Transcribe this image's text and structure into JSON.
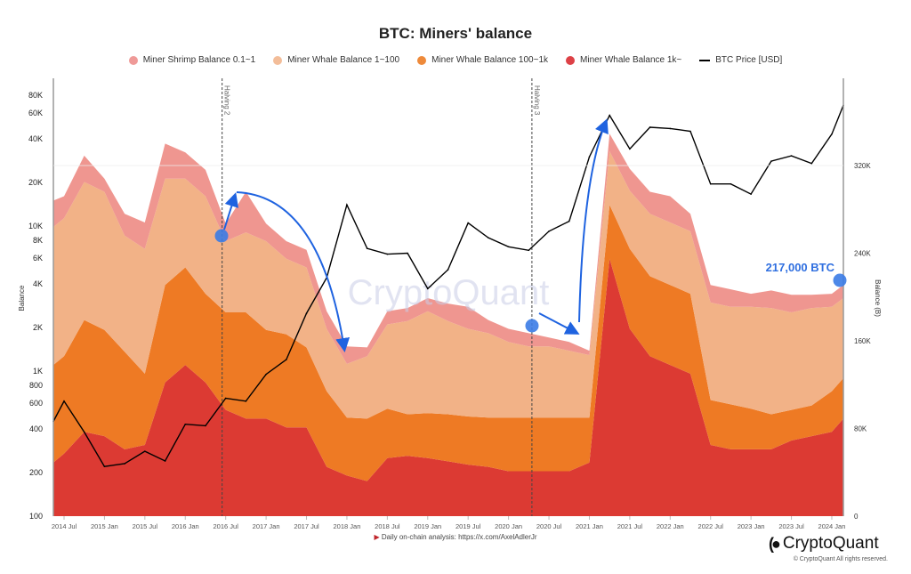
{
  "chart_data": {
    "type": "area",
    "stacked": true,
    "title": "BTC: Miners' balance",
    "ylabel_left": "Balance",
    "ylabel_right": "Balance (B)",
    "left_axis": {
      "scale": "log",
      "range": [
        100,
        100000
      ],
      "ticks": [
        "100",
        "200",
        "400",
        "600",
        "800",
        "1K",
        "2K",
        "4K",
        "6K",
        "8K",
        "10K",
        "20K",
        "40K",
        "60K",
        "80K"
      ]
    },
    "right_axis": {
      "scale": "linear",
      "range": [
        0,
        400000
      ],
      "ticks": [
        "0",
        "80K",
        "160K",
        "240K",
        "320K"
      ]
    },
    "x_ticks": [
      "2014 Jul",
      "2015 Jan",
      "2015 Jul",
      "2016 Jan",
      "2016 Jul",
      "2017 Jan",
      "2017 Jul",
      "2018 Jan",
      "2018 Jul",
      "2019 Jan",
      "2019 Jul",
      "2020 Jan",
      "2020 Jul",
      "2021 Jan",
      "2021 Jul",
      "2022 Jan",
      "2022 Jul",
      "2023 Jan",
      "2023 Jul",
      "2024 Jan"
    ],
    "legend_placement": "top",
    "x": [
      "2014-05",
      "2014-07",
      "2014-10",
      "2015-01",
      "2015-04",
      "2015-07",
      "2015-10",
      "2016-01",
      "2016-04",
      "2016-07",
      "2016-10",
      "2017-01",
      "2017-04",
      "2017-07",
      "2017-10",
      "2018-01",
      "2018-04",
      "2018-07",
      "2018-10",
      "2019-01",
      "2019-04",
      "2019-07",
      "2019-10",
      "2020-01",
      "2020-04",
      "2020-07",
      "2020-10",
      "2021-01",
      "2021-04",
      "2021-07",
      "2021-10",
      "2022-01",
      "2022-04",
      "2022-07",
      "2022-10",
      "2023-01",
      "2023-04",
      "2023-07",
      "2023-10",
      "2024-01",
      "2024-03"
    ],
    "series": [
      {
        "name": "Miner Whale Balance 1k~",
        "axis": "right",
        "color": "#dc3a33",
        "values": [
          49000,
          57000,
          77000,
          73000,
          61000,
          65000,
          122000,
          138000,
          122000,
          97000,
          89000,
          89000,
          81000,
          81000,
          45000,
          37000,
          32000,
          53000,
          55000,
          53000,
          50000,
          47000,
          45000,
          41000,
          41000,
          41000,
          41000,
          49000,
          235000,
          171000,
          146000,
          138000,
          130000,
          65000,
          61000,
          61000,
          61000,
          69000,
          73000,
          77000,
          89000
        ]
      },
      {
        "name": "Miner Whale Balance 100~1k",
        "axis": "right",
        "color": "#ee7a24",
        "values": [
          89000,
          89000,
          102000,
          97000,
          89000,
          65000,
          89000,
          89000,
          81000,
          89000,
          97000,
          81000,
          85000,
          73000,
          69000,
          53000,
          57000,
          45000,
          38000,
          41000,
          43000,
          44000,
          45000,
          49000,
          49000,
          49000,
          49000,
          41000,
          49000,
          73000,
          73000,
          73000,
          73000,
          41000,
          41000,
          37000,
          32000,
          28000,
          28000,
          37000,
          37000
        ]
      },
      {
        "name": "Miner Whale Balance 1~100",
        "axis": "right",
        "color": "#f2b287",
        "values": [
          126000,
          126000,
          126000,
          126000,
          106000,
          114000,
          97000,
          81000,
          89000,
          65000,
          73000,
          81000,
          69000,
          73000,
          57000,
          49000,
          57000,
          77000,
          85000,
          93000,
          85000,
          80000,
          77000,
          69000,
          65000,
          65000,
          61000,
          57000,
          49000,
          53000,
          57000,
          57000,
          57000,
          89000,
          89000,
          93000,
          97000,
          89000,
          89000,
          77000,
          73000
        ]
      },
      {
        "name": "Miner Shrimp Balance 0.1~1",
        "axis": "right",
        "color": "#ef9690",
        "values": [
          24000,
          20000,
          24000,
          12000,
          20000,
          24000,
          32000,
          24000,
          24000,
          16000,
          37000,
          16000,
          16000,
          16000,
          16000,
          16000,
          8000,
          12000,
          12000,
          12000,
          16000,
          20000,
          12000,
          12000,
          12000,
          8000,
          8000,
          4000,
          16000,
          20000,
          20000,
          24000,
          16000,
          16000,
          16000,
          12000,
          16000,
          16000,
          12000,
          12000,
          12000
        ]
      },
      {
        "name": "BTC Price [USD]",
        "axis": "left",
        "type": "line",
        "color": "#000000",
        "values": [
          450,
          620,
          380,
          220,
          230,
          280,
          240,
          430,
          420,
          650,
          620,
          950,
          1200,
          2500,
          4400,
          14000,
          7000,
          6400,
          6500,
          3700,
          5000,
          10500,
          8300,
          7200,
          6800,
          9200,
          10800,
          30000,
          58000,
          34000,
          48000,
          47000,
          45000,
          19500,
          19500,
          16600,
          28000,
          30500,
          27000,
          43000,
          68000
        ]
      }
    ],
    "legend_order": [
      "Miner Shrimp Balance 0.1~1",
      "Miner Whale Balance 1~100",
      "Miner Whale Balance 100~1k",
      "Miner Whale Balance 1k~",
      "BTC Price [USD]"
    ],
    "event_lines": [
      {
        "label": "Halving 2",
        "date": "2016-07"
      },
      {
        "label": "Halving 3",
        "date": "2020-05"
      }
    ],
    "annotations": [
      {
        "text": "217,000 BTC",
        "color": "#2f6fe0"
      }
    ],
    "grid": false
  },
  "legend": [
    {
      "label": "Miner Shrimp Balance 0.1~1",
      "color": "#ef9a98"
    },
    {
      "label": "Miner Whale Balance 1~100",
      "color": "#f3bd99"
    },
    {
      "label": "Miner Whale Balance 100~1k",
      "color": "#ee8a3a"
    },
    {
      "label": "Miner Whale Balance 1k~",
      "color": "#dd4146"
    },
    {
      "label": "BTC Price [USD]",
      "color": "#000000"
    }
  ],
  "watermark": "CryptoQuant",
  "footer": {
    "note": "Daily on-chain analysis: https://x.com/AxelAdlerJr",
    "brand": "CryptoQuant",
    "copyright": "© CryptoQuant All rights reserved."
  }
}
